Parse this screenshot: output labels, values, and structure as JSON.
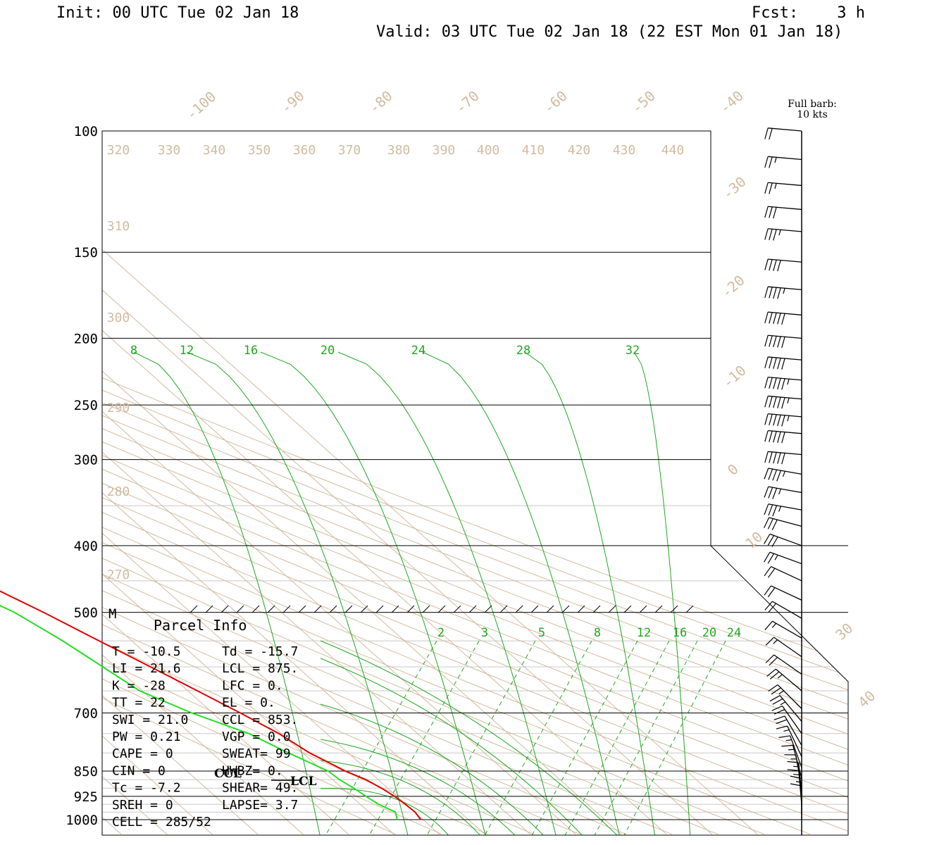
{
  "header": {
    "init": "Init: 00 UTC Tue 02 Jan 18",
    "fcst_label": "Fcst:",
    "fcst_value": "3 h",
    "valid": "Valid: 03 UTC Tue 02 Jan 18 (22 EST Mon 01 Jan 18)"
  },
  "legend": {
    "barb_title": "Full barb:",
    "barb_value": "10 kts"
  },
  "chart_data": {
    "type": "line",
    "title": "",
    "y_axis": {
      "label": "",
      "scale": "log-pressure",
      "range_hpa": [
        1000,
        100
      ],
      "ticks": [
        100,
        150,
        200,
        250,
        300,
        400,
        500,
        700,
        850,
        925,
        1000
      ]
    },
    "skewed_isotherm_labels": [
      "-100",
      "-90",
      "-80",
      "-70",
      "-60",
      "-50",
      "-40",
      "-30",
      "-20",
      "-10",
      "0",
      "10",
      "30",
      "40"
    ],
    "isentrope_labels": [
      "320",
      "330",
      "340",
      "350",
      "360",
      "370",
      "380",
      "390",
      "400",
      "410",
      "420",
      "430",
      "440",
      "310",
      "300",
      "290",
      "280",
      "270"
    ],
    "mixing_ratio_labels_upper": [
      "8",
      "12",
      "16",
      "20",
      "24",
      "28",
      "32"
    ],
    "mixing_ratio_labels_lower": [
      "2",
      "3",
      "5",
      "8",
      "12",
      "16",
      "20",
      "24"
    ],
    "series": [
      {
        "color": "#e00000",
        "points": [
          [
            100,
            -44.5
          ],
          [
            110,
            -46.6
          ],
          [
            120,
            -48.8
          ],
          [
            130,
            -51.1
          ],
          [
            140,
            -53.5
          ],
          [
            150,
            -55.9
          ],
          [
            160,
            -56.4
          ],
          [
            170,
            -57.0
          ],
          [
            185,
            -57.6
          ],
          [
            200,
            -58.1
          ],
          [
            225,
            -61.5
          ],
          [
            250,
            -62.5
          ],
          [
            275,
            -62.8
          ],
          [
            300,
            -62.2
          ],
          [
            325,
            -61.1
          ],
          [
            350,
            -59.8
          ],
          [
            375,
            -58.0
          ],
          [
            400,
            -55.7
          ],
          [
            450,
            -48.9
          ],
          [
            500,
            -42.4
          ],
          [
            550,
            -37.2
          ],
          [
            600,
            -32.3
          ],
          [
            650,
            -27.9
          ],
          [
            700,
            -23.9
          ],
          [
            750,
            -20.5
          ],
          [
            800,
            -18.5
          ],
          [
            850,
            -15.1
          ],
          [
            875,
            -12.7
          ],
          [
            900,
            -11.4
          ],
          [
            925,
            -10.5
          ],
          [
            950,
            -10.1
          ],
          [
            975,
            -9.9
          ],
          [
            1000,
            -10.5
          ]
        ]
      },
      {
        "color": "#22e022",
        "points": [
          [
            100,
            -88.3
          ],
          [
            150,
            -86.8
          ],
          [
            165,
            -87.4
          ],
          [
            180,
            -91.1
          ],
          [
            195,
            -90.5
          ],
          [
            210,
            -85.8
          ],
          [
            230,
            -80.6
          ],
          [
            250,
            -78.0
          ],
          [
            275,
            -76.3
          ],
          [
            300,
            -75.9
          ],
          [
            325,
            -72.4
          ],
          [
            350,
            -69.3
          ],
          [
            400,
            -63.2
          ],
          [
            450,
            -55.9
          ],
          [
            500,
            -48.8
          ],
          [
            550,
            -45.2
          ],
          [
            600,
            -42.8
          ],
          [
            650,
            -40.6
          ],
          [
            700,
            -34.6
          ],
          [
            750,
            -27.1
          ],
          [
            800,
            -23.2
          ],
          [
            850,
            -18.9
          ],
          [
            875,
            -18.5
          ],
          [
            900,
            -17.5
          ],
          [
            925,
            -16.8
          ],
          [
            950,
            -16.0
          ],
          [
            975,
            -14.2
          ],
          [
            1000,
            -15.7
          ]
        ]
      }
    ],
    "wind_barbs": [
      {
        "p": 100,
        "dir": 275,
        "kts": 20
      },
      {
        "p": 110,
        "dir": 275,
        "kts": 25
      },
      {
        "p": 120,
        "dir": 275,
        "kts": 25
      },
      {
        "p": 130,
        "dir": 275,
        "kts": 30
      },
      {
        "p": 140,
        "dir": 275,
        "kts": 35
      },
      {
        "p": 155,
        "dir": 275,
        "kts": 40
      },
      {
        "p": 170,
        "dir": 275,
        "kts": 45
      },
      {
        "p": 185,
        "dir": 275,
        "kts": 50
      },
      {
        "p": 200,
        "dir": 275,
        "kts": 50
      },
      {
        "p": 215,
        "dir": 275,
        "kts": 50
      },
      {
        "p": 230,
        "dir": 275,
        "kts": 55
      },
      {
        "p": 245,
        "dir": 275,
        "kts": 55
      },
      {
        "p": 260,
        "dir": 275,
        "kts": 55
      },
      {
        "p": 275,
        "dir": 275,
        "kts": 50
      },
      {
        "p": 295,
        "dir": 275,
        "kts": 50
      },
      {
        "p": 315,
        "dir": 280,
        "kts": 45
      },
      {
        "p": 335,
        "dir": 280,
        "kts": 35
      },
      {
        "p": 355,
        "dir": 280,
        "kts": 35
      },
      {
        "p": 375,
        "dir": 285,
        "kts": 30
      },
      {
        "p": 400,
        "dir": 290,
        "kts": 30
      },
      {
        "p": 425,
        "dir": 290,
        "kts": 25
      },
      {
        "p": 450,
        "dir": 295,
        "kts": 20
      },
      {
        "p": 480,
        "dir": 295,
        "kts": 20
      },
      {
        "p": 510,
        "dir": 300,
        "kts": 20
      },
      {
        "p": 545,
        "dir": 300,
        "kts": 15
      },
      {
        "p": 580,
        "dir": 305,
        "kts": 15
      },
      {
        "p": 615,
        "dir": 305,
        "kts": 20
      },
      {
        "p": 650,
        "dir": 310,
        "kts": 25
      },
      {
        "p": 690,
        "dir": 315,
        "kts": 25
      },
      {
        "p": 720,
        "dir": 320,
        "kts": 25
      },
      {
        "p": 750,
        "dir": 325,
        "kts": 20
      },
      {
        "p": 780,
        "dir": 330,
        "kts": 20
      },
      {
        "p": 810,
        "dir": 335,
        "kts": 15
      },
      {
        "p": 840,
        "dir": 340,
        "kts": 15
      },
      {
        "p": 870,
        "dir": 345,
        "kts": 15
      },
      {
        "p": 900,
        "dir": 350,
        "kts": 15
      },
      {
        "p": 925,
        "dir": 355,
        "kts": 15
      },
      {
        "p": 950,
        "dir": 355,
        "kts": 15
      },
      {
        "p": 975,
        "dir": 360,
        "kts": 15
      },
      {
        "p": 1000,
        "dir": 360,
        "kts": 10
      }
    ],
    "markers": {
      "m_label": "M",
      "ccl_label": "CCL",
      "lcl_label": "LCL"
    }
  },
  "parcel_info": {
    "title": "Parcel Info",
    "rows": [
      {
        "left": "T  =    -10.5",
        "right": "Td = -15.7"
      },
      {
        "left": "LI =     21.6",
        "right": "LCL =  875."
      },
      {
        "left": "K  =      -28",
        "right": "LFC =    0."
      },
      {
        "left": "TT =       22",
        "right": "EL  =    0."
      },
      {
        "left": "SWI =    21.0",
        "right": "CCL =  853."
      },
      {
        "left": "PW =     0.21",
        "right": "VGP =   0.0"
      },
      {
        "left": "CAPE =      0",
        "right": "SWEAT=    99"
      },
      {
        "left": "CIN =       0",
        "right": "HWBZ=    0."
      },
      {
        "left": "Tc =     -7.2",
        "right": "SHEAR=   49."
      },
      {
        "left": "SREH =      0",
        "right": "LAPSE=   3.7"
      },
      {
        "left": "CELL = 285/52",
        "right": ""
      }
    ]
  }
}
